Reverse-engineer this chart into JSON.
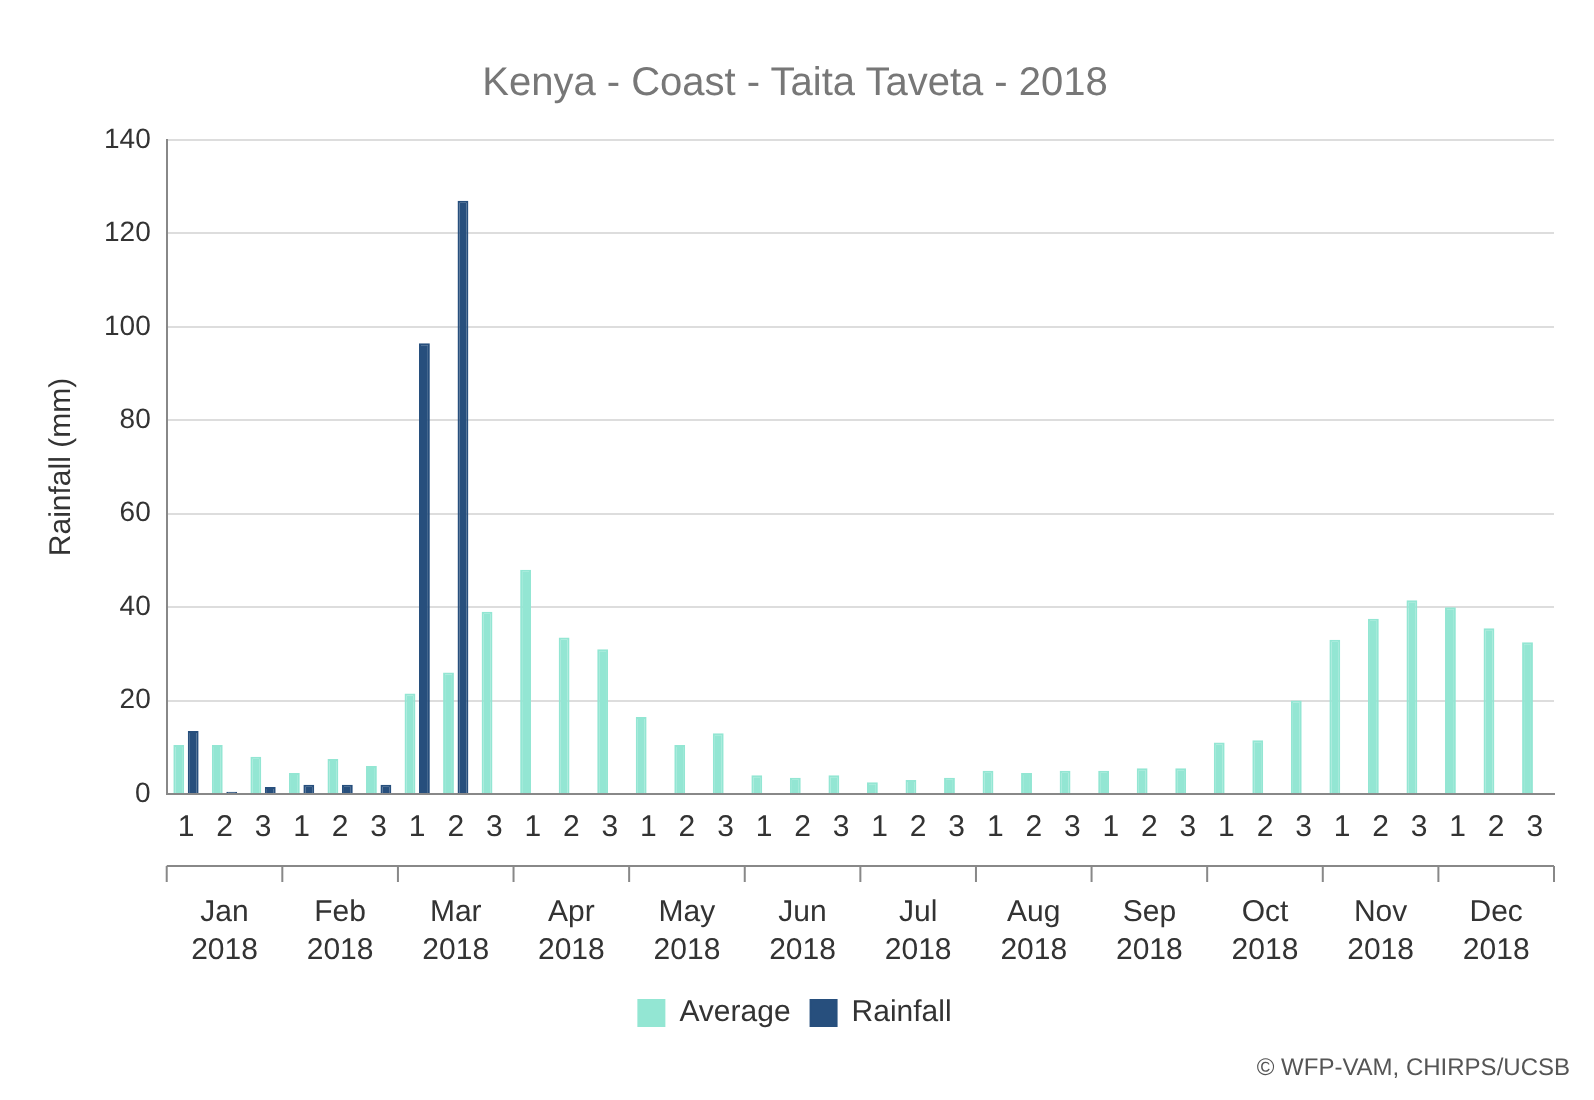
{
  "chart_data": {
    "type": "bar",
    "title": "Kenya - Coast - Taita Taveta - 2018",
    "ylabel": "Rainfall (mm)",
    "categories": [
      "1",
      "2",
      "3",
      "1",
      "2",
      "3",
      "1",
      "2",
      "3",
      "1",
      "2",
      "3",
      "1",
      "2",
      "3",
      "1",
      "2",
      "3",
      "1",
      "2",
      "3",
      "1",
      "2",
      "3",
      "1",
      "2",
      "3",
      "1",
      "2",
      "3",
      "1",
      "2",
      "3",
      "1",
      "2",
      "3"
    ],
    "series": [
      {
        "name": "Average",
        "color": "#93e6d3",
        "values": [
          10.5,
          10.5,
          8,
          4.5,
          7.5,
          6,
          21.5,
          26,
          39,
          48,
          33.5,
          31,
          16.5,
          10.5,
          13,
          4,
          3.5,
          4,
          2.5,
          3,
          3.5,
          5,
          4.5,
          5,
          5,
          5.5,
          5.5,
          11,
          11.5,
          20,
          33,
          37.5,
          41.5,
          40,
          35.5,
          32.5
        ]
      },
      {
        "name": "Rainfall",
        "color": "#274f7d",
        "values": [
          13.5,
          0.5,
          1.5,
          2,
          2,
          2,
          96.5,
          127,
          null,
          null,
          null,
          null,
          null,
          null,
          null,
          null,
          null,
          null,
          null,
          null,
          null,
          null,
          null,
          null,
          null,
          null,
          null,
          null,
          null,
          null,
          null,
          null,
          null,
          null,
          null,
          null
        ]
      }
    ],
    "ylim": [
      0,
      140
    ],
    "yticks": [
      0,
      20,
      40,
      60,
      80,
      100,
      120,
      140
    ],
    "grid": "y",
    "legend": "bottom",
    "annotations": [
      "Jan 2018",
      "Feb 2018",
      "Mar 2018",
      "Apr 2018",
      "May 2018",
      "Jun 2018",
      "Jul 2018",
      "Aug 2018",
      "Sep 2018",
      "Oct 2018",
      "Nov 2018",
      "Dec 2018",
      "© WFP-VAM, CHIRPS/UCSB"
    ]
  }
}
